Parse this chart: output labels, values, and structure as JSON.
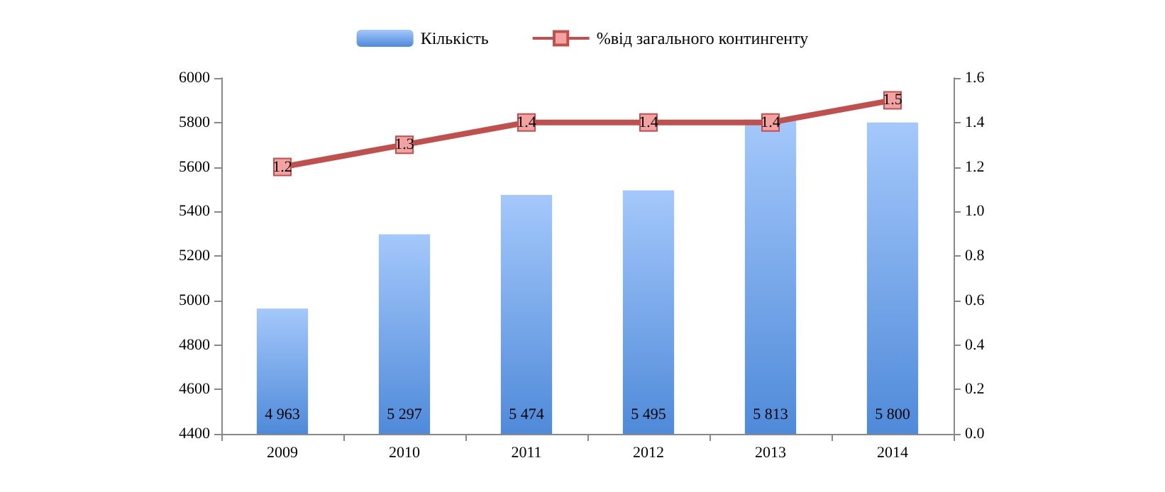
{
  "chart_data": {
    "type": "bar",
    "categories": [
      "2009",
      "2010",
      "2011",
      "2012",
      "2013",
      "2014"
    ],
    "series": [
      {
        "name": "Кількість",
        "color": "#4f8ad9",
        "values": [
          4963,
          5297,
          5474,
          5495,
          5813,
          5800
        ],
        "value_labels": [
          "4 963",
          "5 297",
          "5 474",
          "5 495",
          "5 813",
          "5 800"
        ]
      },
      {
        "name": "%від загального контингенту",
        "type": "line",
        "axis": "y2",
        "color": "#c0504d",
        "values": [
          1.2,
          1.3,
          1.4,
          1.4,
          1.4,
          1.5
        ],
        "value_labels": [
          "1.2",
          "1.3",
          "1.4",
          "1.4",
          "1.4",
          "1.5"
        ]
      }
    ],
    "ylim": [
      4400,
      6000
    ],
    "yticks": [
      4400,
      4600,
      4800,
      5000,
      5200,
      5400,
      5600,
      5800,
      6000
    ],
    "y2lim": [
      0,
      1.6
    ],
    "y2ticks": [
      {
        "value": 0,
        "label": "0.0"
      },
      0.2,
      0.4,
      0.6,
      0.8,
      {
        "value": 1,
        "label": "1.0"
      },
      1.2,
      1.4,
      1.6
    ],
    "grid": false,
    "legend": "top",
    "marker": "square",
    "line_style": "solid"
  }
}
